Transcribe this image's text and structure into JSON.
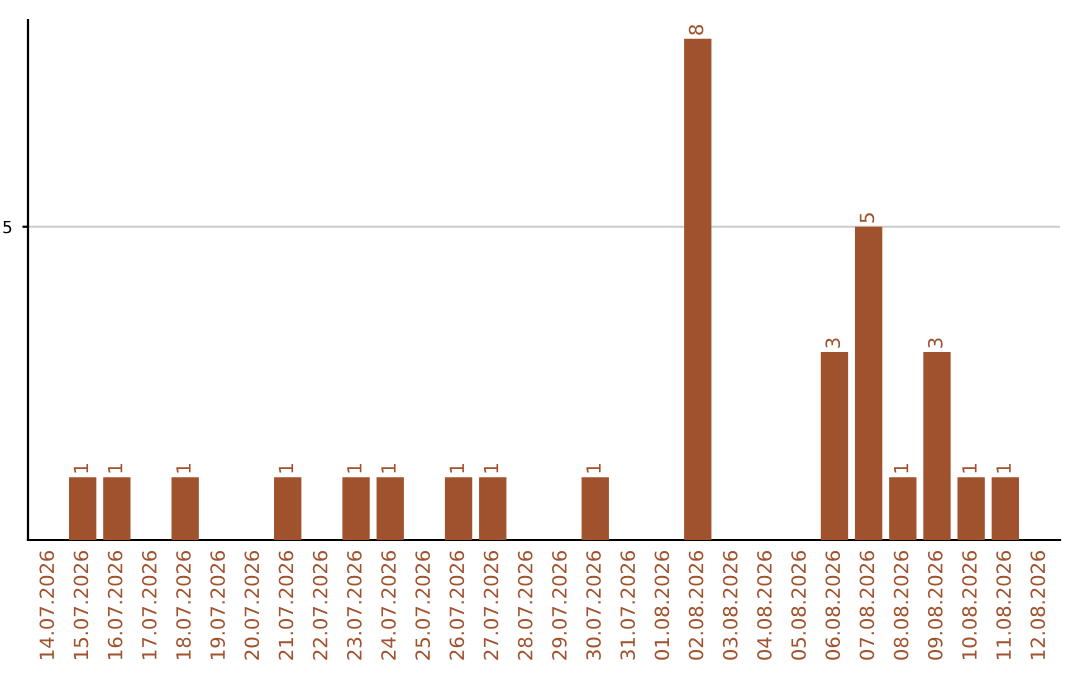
{
  "chart_data": {
    "type": "bar",
    "categories": [
      "14.07.2026",
      "15.07.2026",
      "16.07.2026",
      "17.07.2026",
      "18.07.2026",
      "19.07.2026",
      "20.07.2026",
      "21.07.2026",
      "22.07.2026",
      "23.07.2026",
      "24.07.2026",
      "25.07.2026",
      "26.07.2026",
      "27.07.2026",
      "28.07.2026",
      "29.07.2026",
      "30.07.2026",
      "31.07.2026",
      "01.08.2026",
      "02.08.2026",
      "03.08.2026",
      "04.08.2026",
      "05.08.2026",
      "06.08.2026",
      "07.08.2026",
      "08.08.2026",
      "09.08.2026",
      "10.08.2026",
      "11.08.2026",
      "12.08.2026"
    ],
    "values": [
      0,
      1,
      1,
      0,
      1,
      0,
      0,
      1,
      0,
      1,
      1,
      0,
      1,
      1,
      0,
      0,
      1,
      0,
      0,
      8,
      0,
      0,
      0,
      3,
      5,
      1,
      3,
      1,
      1,
      0
    ],
    "value_labels": [
      null,
      "1",
      "1",
      null,
      "1",
      null,
      null,
      "1",
      null,
      "1",
      "1",
      null,
      "1",
      "1",
      null,
      null,
      "1",
      null,
      null,
      "8",
      null,
      null,
      null,
      "3",
      "5",
      "1",
      "3",
      "1",
      "1",
      null
    ],
    "color": "#a0522d",
    "ylim": [
      0,
      8.3
    ],
    "yticks": [
      5
    ],
    "grid": "y"
  }
}
